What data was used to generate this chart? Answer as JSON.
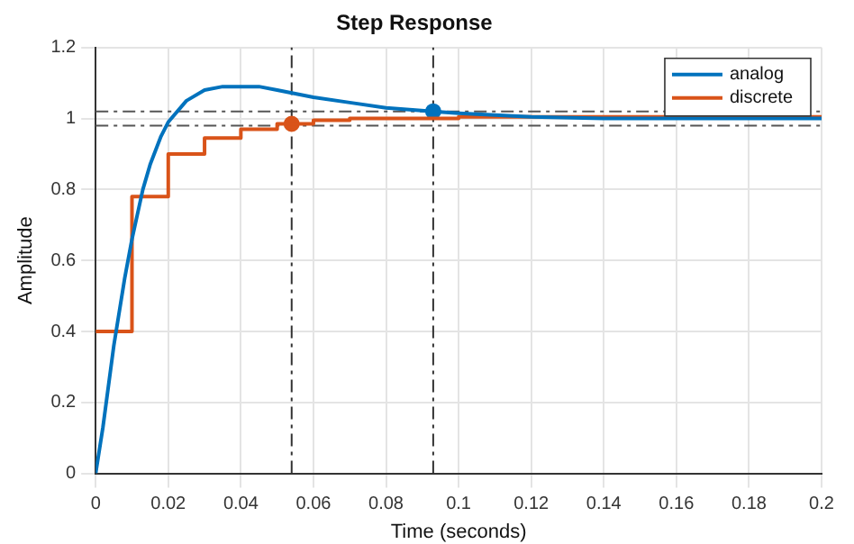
{
  "chart_data": {
    "type": "line",
    "title": "Step Response",
    "xlabel": "Time (seconds)",
    "ylabel": "Amplitude",
    "xlim": [
      0,
      0.2
    ],
    "xticks": [
      0,
      0.02,
      0.04,
      0.06,
      0.08,
      0.1,
      0.12,
      0.14,
      0.16,
      0.18,
      0.2
    ],
    "ylim": [
      0,
      1.2
    ],
    "yticks": [
      0,
      0.2,
      0.4,
      0.6,
      0.8,
      1,
      1.2
    ],
    "grid": true,
    "legend": "top right",
    "marker": "none",
    "line_style": "solid",
    "series": [
      {
        "name": "analog",
        "color": "#0072bd",
        "x": [
          0,
          0.002,
          0.005,
          0.008,
          0.01,
          0.013,
          0.015,
          0.018,
          0.02,
          0.025,
          0.03,
          0.035,
          0.04,
          0.045,
          0.05,
          0.055,
          0.06,
          0.07,
          0.08,
          0.093,
          0.1,
          0.12,
          0.14,
          0.16,
          0.2
        ],
        "values": [
          0,
          0.13,
          0.36,
          0.55,
          0.66,
          0.8,
          0.87,
          0.95,
          0.99,
          1.05,
          1.08,
          1.09,
          1.09,
          1.09,
          1.08,
          1.07,
          1.06,
          1.045,
          1.03,
          1.02,
          1.015,
          1.005,
          1.0,
          1.0,
          1.0
        ]
      },
      {
        "name": "discrete",
        "type": "step",
        "color": "#d95319",
        "x": [
          0,
          0.01,
          0.02,
          0.03,
          0.04,
          0.05,
          0.06,
          0.07,
          0.08,
          0.1,
          0.2
        ],
        "values": [
          0.4,
          0.78,
          0.9,
          0.945,
          0.97,
          0.985,
          0.995,
          1.0,
          1.0,
          1.005,
          1.005
        ]
      },
      {
        "type": "scatter",
        "color": "#0072bd",
        "marker": "circle",
        "x": [
          0.093
        ],
        "values": [
          1.02
        ]
      },
      {
        "type": "scatter",
        "color": "#d95319",
        "marker": "circle",
        "x": [
          0.054
        ],
        "values": [
          0.985
        ]
      }
    ],
    "ref_lines": [
      {
        "axis": "y",
        "value": 1.02,
        "color": "#555555",
        "line_style": "dashdot"
      },
      {
        "axis": "y",
        "value": 0.98,
        "color": "#555555",
        "line_style": "dashdot"
      },
      {
        "axis": "x",
        "value": 0.054,
        "color": "#333333",
        "line_style": "dashdot"
      },
      {
        "axis": "x",
        "value": 0.093,
        "color": "#333333",
        "line_style": "dashdot"
      }
    ]
  }
}
